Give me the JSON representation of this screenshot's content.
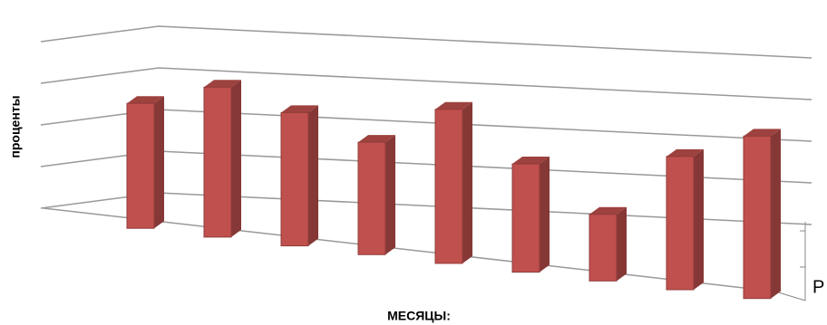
{
  "chart_data": {
    "type": "bar3d",
    "x_label": "МЕСЯЦЫ:",
    "y_label": "проценты",
    "depth_label": "Р",
    "values": [
      3.0,
      3.6,
      3.2,
      2.7,
      3.7,
      2.6,
      1.6,
      3.2,
      3.9
    ],
    "color": "#c0504d",
    "ylim": [
      0,
      5
    ],
    "yticks": [
      0,
      1,
      2,
      3,
      4
    ],
    "grid": true
  }
}
